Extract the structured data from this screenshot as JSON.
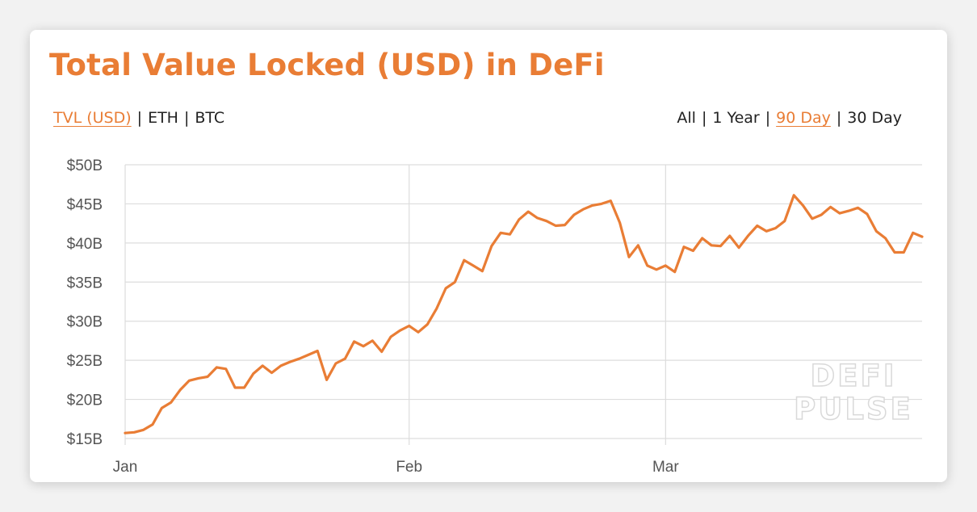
{
  "colors": {
    "accent": "#e97d35",
    "grid": "#dddddd",
    "text": "#222222",
    "tick": "#555555"
  },
  "header": {
    "title": "Total Value Locked (USD) in DeFi"
  },
  "metric_toggles": [
    {
      "label": "TVL (USD)",
      "active": true
    },
    {
      "label": "ETH",
      "active": false
    },
    {
      "label": "BTC",
      "active": false
    }
  ],
  "range_toggles": [
    {
      "label": "All",
      "active": false
    },
    {
      "label": "1 Year",
      "active": false
    },
    {
      "label": "90 Day",
      "active": true
    },
    {
      "label": "30 Day",
      "active": false
    }
  ],
  "separator": "|",
  "watermark": [
    "DEFI",
    "PULSE"
  ],
  "chart_data": {
    "type": "line",
    "title": "Total Value Locked (USD) in DeFi",
    "xlabel": "",
    "ylabel": "",
    "x_ticks": [
      "Jan",
      "Feb",
      "Mar"
    ],
    "y_ticks": [
      "$15B",
      "$20B",
      "$25B",
      "$30B",
      "$35B",
      "$40B",
      "$45B",
      "$50B"
    ],
    "ylim": [
      15,
      50
    ],
    "y_unit": "$B",
    "grid": true,
    "x_start": "2021-01-01",
    "series": [
      {
        "x": [
          "2021-01-01",
          "2021-01-02",
          "2021-01-03",
          "2021-01-04",
          "2021-01-05",
          "2021-01-06",
          "2021-01-07",
          "2021-01-08",
          "2021-01-09",
          "2021-01-10",
          "2021-01-11",
          "2021-01-12",
          "2021-01-13",
          "2021-01-14",
          "2021-01-15",
          "2021-01-16",
          "2021-01-17",
          "2021-01-18",
          "2021-01-19",
          "2021-01-20",
          "2021-01-21",
          "2021-01-22",
          "2021-01-23",
          "2021-01-24",
          "2021-01-25",
          "2021-01-26",
          "2021-01-27",
          "2021-01-28",
          "2021-01-29",
          "2021-01-30",
          "2021-01-31",
          "2021-02-01",
          "2021-02-02",
          "2021-02-03",
          "2021-02-04",
          "2021-02-05",
          "2021-02-06",
          "2021-02-07",
          "2021-02-08",
          "2021-02-09",
          "2021-02-10",
          "2021-02-11",
          "2021-02-12",
          "2021-02-13",
          "2021-02-14",
          "2021-02-15",
          "2021-02-16",
          "2021-02-17",
          "2021-02-18",
          "2021-02-19",
          "2021-02-20",
          "2021-02-21",
          "2021-02-22",
          "2021-02-23",
          "2021-02-24",
          "2021-02-25",
          "2021-02-26",
          "2021-02-27",
          "2021-02-28",
          "2021-03-01",
          "2021-03-02",
          "2021-03-03",
          "2021-03-04",
          "2021-03-05",
          "2021-03-06",
          "2021-03-07",
          "2021-03-08",
          "2021-03-09",
          "2021-03-10",
          "2021-03-11",
          "2021-03-12",
          "2021-03-13",
          "2021-03-14",
          "2021-03-15",
          "2021-03-16",
          "2021-03-17",
          "2021-03-18",
          "2021-03-19",
          "2021-03-20",
          "2021-03-21",
          "2021-03-22",
          "2021-03-23",
          "2021-03-24",
          "2021-03-25",
          "2021-03-26",
          "2021-03-27",
          "2021-03-28",
          "2021-03-29"
        ],
        "values": [
          15.7,
          15.8,
          16.1,
          16.8,
          18.9,
          19.6,
          21.2,
          22.4,
          22.7,
          22.9,
          24.1,
          23.9,
          21.5,
          21.5,
          23.3,
          24.3,
          23.4,
          24.3,
          24.8,
          25.2,
          25.7,
          26.2,
          22.5,
          24.6,
          25.2,
          27.4,
          26.8,
          27.5,
          26.1,
          28.0,
          28.8,
          29.4,
          28.6,
          29.6,
          31.6,
          34.2,
          35.0,
          37.8,
          37.1,
          36.4,
          39.6,
          41.3,
          41.1,
          43.0,
          44.0,
          43.2,
          42.8,
          42.2,
          42.3,
          43.6,
          44.3,
          44.8,
          45.0,
          45.4,
          42.6,
          38.2,
          39.7,
          37.1,
          36.6,
          37.1,
          36.3,
          39.5,
          39.0,
          40.6,
          39.7,
          39.6,
          40.9,
          39.4,
          40.9,
          42.2,
          41.5,
          41.9,
          42.8,
          46.1,
          44.8,
          43.1,
          43.6,
          44.6,
          43.8,
          44.1,
          44.5,
          43.7,
          41.5,
          40.6,
          38.8,
          38.8,
          41.3,
          40.8
        ]
      }
    ]
  }
}
